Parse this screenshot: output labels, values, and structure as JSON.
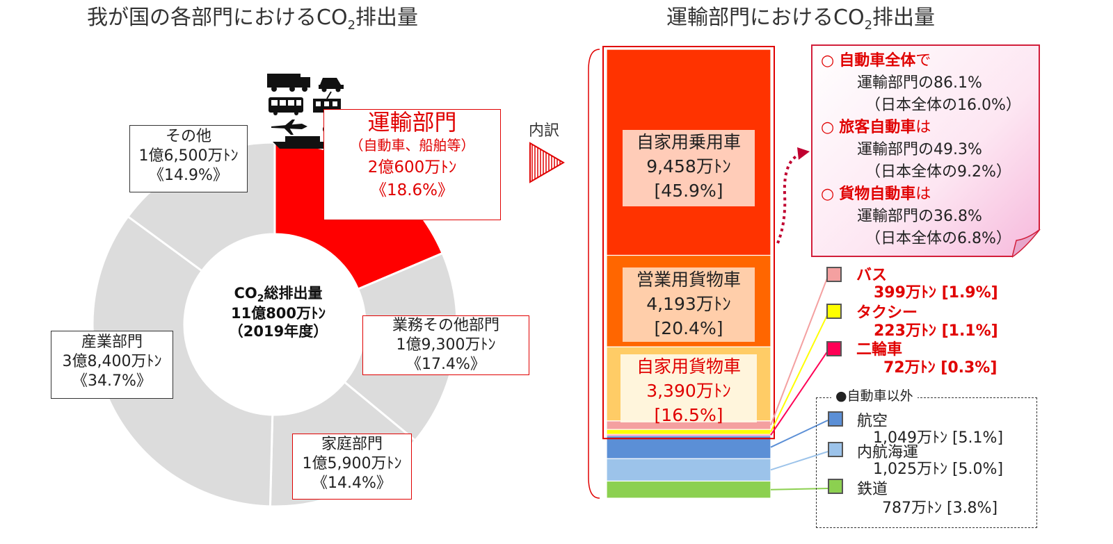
{
  "left_title": {
    "pre": "我が国の各部門における",
    "co": "CO",
    "sub": "2",
    "post": "排出量"
  },
  "right_title": {
    "pre": "運輸部門における",
    "co": "CO",
    "sub": "2",
    "post": "排出量"
  },
  "donut_center": {
    "co": "CO",
    "sub": "2",
    "line1_rest": "総排出量",
    "line2": "11億800万ﾄﾝ",
    "line3": "（2019年度）"
  },
  "labels": {
    "transport": {
      "name": "運輸部門",
      "sub": "（自動車、船舶等）",
      "amount": "2億600万ﾄﾝ",
      "pct": "《18.6%》"
    },
    "business": {
      "name": "業務その他部門",
      "amount": "1億9,300万ﾄﾝ",
      "pct": "《17.4%》"
    },
    "household": {
      "name": "家庭部門",
      "amount": "1億5,900万ﾄﾝ",
      "pct": "《14.4%》"
    },
    "industry": {
      "name": "産業部門",
      "amount": "3億8,400万ﾄﾝ",
      "pct": "《34.7%》"
    },
    "other": {
      "name": "その他",
      "amount": "1億6,500万ﾄﾝ",
      "pct": "《14.9%》"
    }
  },
  "breakdown_label": "内訳",
  "bar_labels": {
    "private_car": {
      "name": "自家用乗用車",
      "amount": "9,458万ﾄﾝ",
      "pct": "[45.9%]"
    },
    "commercial_truck": {
      "name": "営業用貨物車",
      "amount": "4,193万ﾄﾝ",
      "pct": "[20.4%]"
    },
    "private_truck": {
      "name": "自家用貨物車",
      "amount": "3,390万ﾄﾝ",
      "pct": "[16.5%]"
    }
  },
  "callout": {
    "marker": "○",
    "l1_bold": "自動車全体",
    "l1_rest": "で",
    "l2": "運輸部門の86.1%",
    "l3": "（日本全体の16.0%）",
    "l4_bold": "旅客自動車",
    "l4_rest": "は",
    "l5": "運輸部門の49.3%",
    "l6": "（日本全体の9.2%）",
    "l7_bold": "貨物自動車",
    "l7_rest": "は",
    "l8": "運輸部門の36.8%",
    "l9": "（日本全体の6.8%）"
  },
  "side_legend": {
    "bus": {
      "name": "バス",
      "value": "399万ﾄﾝ [1.9%]"
    },
    "taxi": {
      "name": "タクシー",
      "value": "223万ﾄﾝ [1.1%]"
    },
    "moto": {
      "name": "二輪車",
      "value": "72万ﾄﾝ [0.3%]"
    },
    "other_header": "●自動車以外",
    "air": {
      "name": "航空",
      "value": "1,049万ﾄﾝ [5.1%]"
    },
    "ship": {
      "name": "内航海運",
      "value": "1,025万ﾄﾝ [5.0%]"
    },
    "rail": {
      "name": "鉄道",
      "value": "787万ﾄﾝ [3.8%]"
    }
  },
  "colors": {
    "transport": "#ff0000",
    "donut_other": "#dcdcdc",
    "private_car": "#ff3300",
    "commercial_truck": "#ff6600",
    "private_truck": "#ffcc66",
    "bus": "#f4a0a0",
    "taxi": "#ffff00",
    "moto": "#ff0055",
    "air": "#5b8fd6",
    "ship": "#9cc3ea",
    "rail": "#8cd050",
    "accent_red": "#e00000"
  },
  "chart_data": [
    {
      "type": "pie",
      "title": "我が国の各部門におけるCO2排出量",
      "total": "11億800万ﾄﾝ（2019年度）",
      "categories": [
        "運輸部門",
        "業務その他部門",
        "家庭部門",
        "産業部門",
        "その他"
      ],
      "values": [
        18.6,
        17.4,
        14.4,
        34.7,
        14.9
      ],
      "amounts_man_ton": [
        20600,
        19300,
        15900,
        38400,
        16500
      ]
    },
    {
      "type": "bar",
      "title": "運輸部門におけるCO2排出量",
      "stacked": true,
      "categories": [
        "自家用乗用車",
        "営業用貨物車",
        "自家用貨物車",
        "バス",
        "タクシー",
        "二輪車",
        "航空",
        "内航海運",
        "鉄道"
      ],
      "values": [
        45.9,
        20.4,
        16.5,
        1.9,
        1.1,
        0.3,
        5.1,
        5.0,
        3.8
      ],
      "amounts_man_ton": [
        9458,
        4193,
        3390,
        399,
        223,
        72,
        1049,
        1025,
        787
      ]
    }
  ]
}
